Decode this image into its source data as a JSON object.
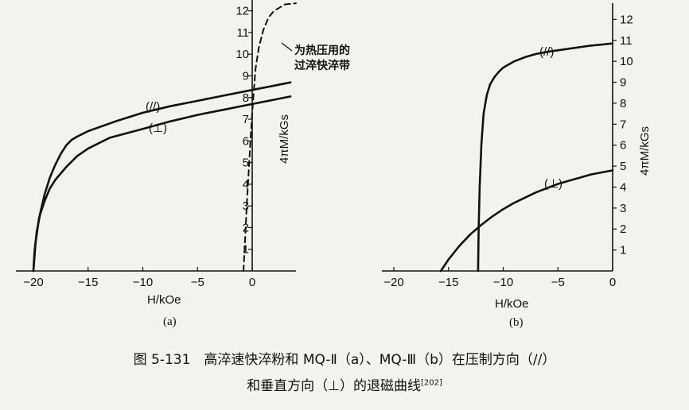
{
  "caption": {
    "line1": "图 5-131　高淬速快淬粉和 MQ-Ⅱ（a）、MQ-Ⅲ（b）在压制方向（//）",
    "line2": "和垂直方向（⊥）的退磁曲线",
    "ref": "[202]"
  },
  "annotation": {
    "line1": "为热压用的",
    "line2": "过淬快淬带"
  },
  "chart_data": [
    {
      "type": "line",
      "panel_label": "(a)",
      "xlabel": "H/kOe",
      "ylabel": "4πM/kGs",
      "xlim": [
        -20,
        4
      ],
      "ylim": [
        0,
        12.5
      ],
      "x_ticks": [
        -20,
        -15,
        -10,
        -5,
        0
      ],
      "x_tick_labels": [
        "−20",
        "−15",
        "−10",
        "−5",
        "0"
      ],
      "y_ticks": [
        1,
        2,
        3,
        4,
        5,
        6,
        7,
        8,
        9,
        10,
        11,
        12
      ],
      "y_tick_labels": [
        "1",
        "2",
        "3",
        "4",
        "5",
        "6",
        "7",
        "8",
        "9",
        "10",
        "11",
        "12"
      ],
      "grid": false,
      "series": [
        {
          "name": "(//)",
          "style": "solid",
          "x": [
            -20.0,
            -19.8,
            -19.5,
            -19.0,
            -18.5,
            -18.0,
            -17.5,
            -17.0,
            -16.5,
            -16.0,
            -15.0,
            -12.5,
            -10.0,
            -7.5,
            -5.0,
            -2.5,
            0,
            2.0,
            3.5
          ],
          "y": [
            0.0,
            1.3,
            2.4,
            3.5,
            4.3,
            4.9,
            5.4,
            5.8,
            6.05,
            6.2,
            6.45,
            6.9,
            7.3,
            7.6,
            7.85,
            8.1,
            8.35,
            8.55,
            8.7
          ]
        },
        {
          "name": "(⊥)",
          "style": "solid",
          "x": [
            -20.0,
            -19.9,
            -19.7,
            -19.4,
            -19.0,
            -18.5,
            -18.0,
            -17.0,
            -16.0,
            -15.0,
            -13.0,
            -10.0,
            -7.5,
            -5.0,
            -2.5,
            0,
            2.0,
            3.5
          ],
          "y": [
            0.0,
            0.9,
            1.8,
            2.6,
            3.2,
            3.8,
            4.2,
            4.8,
            5.3,
            5.65,
            6.15,
            6.55,
            6.9,
            7.2,
            7.45,
            7.7,
            7.9,
            8.05
          ]
        },
        {
          "name": "为热压用的过淬快淬带",
          "style": "dashed",
          "x": [
            -0.8,
            -0.65,
            -0.5,
            -0.3,
            -0.1,
            0.1,
            0.3,
            0.6,
            1.0,
            1.5,
            2.0,
            3.0,
            4.0
          ],
          "y": [
            0.0,
            1.5,
            3.0,
            4.8,
            6.5,
            8.0,
            9.3,
            10.3,
            11.1,
            11.7,
            12.0,
            12.3,
            12.35
          ]
        }
      ]
    },
    {
      "type": "line",
      "panel_label": "(b)",
      "xlabel": "H/kOe",
      "ylabel": "4πM/kGs",
      "xlim": [
        -20,
        0
      ],
      "ylim": [
        0,
        13
      ],
      "x_ticks": [
        -20,
        -15,
        -10,
        -5,
        0
      ],
      "x_tick_labels": [
        "−20",
        "−15",
        "−10",
        "−5",
        "0"
      ],
      "y_ticks": [
        1,
        2,
        3,
        4,
        5,
        6,
        7,
        8,
        9,
        10,
        11,
        12
      ],
      "y_tick_labels": [
        "1",
        "2",
        "3",
        "4",
        "5",
        "6",
        "7",
        "8",
        "9",
        "10",
        "11",
        "12"
      ],
      "grid": false,
      "series": [
        {
          "name": "(//)",
          "style": "solid",
          "x": [
            -12.3,
            -12.25,
            -12.15,
            -12.0,
            -11.8,
            -11.5,
            -11.2,
            -10.8,
            -10.4,
            -10.0,
            -9.5,
            -9.0,
            -8.0,
            -7.0,
            -6.0,
            -4.0,
            -2.0,
            0
          ],
          "y": [
            0.0,
            2.0,
            4.0,
            6.0,
            7.5,
            8.4,
            8.9,
            9.25,
            9.5,
            9.7,
            9.85,
            10.0,
            10.2,
            10.35,
            10.45,
            10.6,
            10.75,
            10.85
          ]
        },
        {
          "name": "(⊥)",
          "style": "solid",
          "x": [
            -15.7,
            -15.0,
            -14.0,
            -13.0,
            -12.0,
            -11.0,
            -10.0,
            -9.0,
            -8.0,
            -7.0,
            -6.0,
            -5.0,
            -4.0,
            -3.0,
            -2.0,
            -1.0,
            0
          ],
          "y": [
            0.0,
            0.55,
            1.2,
            1.75,
            2.2,
            2.6,
            2.95,
            3.25,
            3.5,
            3.75,
            3.95,
            4.15,
            4.3,
            4.45,
            4.6,
            4.7,
            4.8
          ]
        }
      ]
    }
  ]
}
